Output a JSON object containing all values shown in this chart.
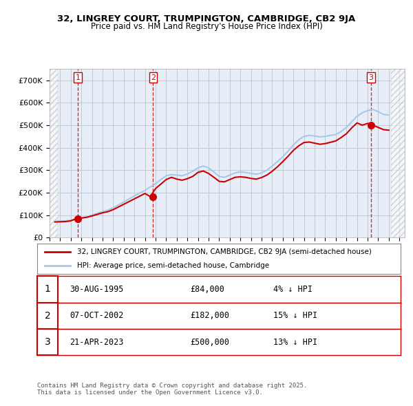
{
  "title1": "32, LINGREY COURT, TRUMPINGTON, CAMBRIDGE, CB2 9JA",
  "title2": "Price paid vs. HM Land Registry's House Price Index (HPI)",
  "ylabel_ticks": [
    "£0",
    "£100K",
    "£200K",
    "£300K",
    "£400K",
    "£500K",
    "£600K",
    "£700K"
  ],
  "ytick_vals": [
    0,
    100000,
    200000,
    300000,
    400000,
    500000,
    600000,
    700000
  ],
  "ylim": [
    0,
    750000
  ],
  "xlim_start": 1993.0,
  "xlim_end": 2026.5,
  "hpi_color": "#a8c8e8",
  "price_color": "#cc0000",
  "bg_color": "#e8eef8",
  "grid_color": "#c0c8d8",
  "sale_points": [
    {
      "year": 1995.664,
      "price": 84000,
      "label": "1"
    },
    {
      "year": 2002.769,
      "price": 182000,
      "label": "2"
    },
    {
      "year": 2023.311,
      "price": 500000,
      "label": "3"
    }
  ],
  "legend_line1": "32, LINGREY COURT, TRUMPINGTON, CAMBRIDGE, CB2 9JA (semi-detached house)",
  "legend_line2": "HPI: Average price, semi-detached house, Cambridge",
  "table_rows": [
    {
      "num": "1",
      "date": "30-AUG-1995",
      "price": "£84,000",
      "pct": "4% ↓ HPI"
    },
    {
      "num": "2",
      "date": "07-OCT-2002",
      "price": "£182,000",
      "pct": "15% ↓ HPI"
    },
    {
      "num": "3",
      "date": "21-APR-2023",
      "price": "£500,000",
      "pct": "13% ↓ HPI"
    }
  ],
  "footer": "Contains HM Land Registry data © Crown copyright and database right 2025.\nThis data is licensed under the Open Government Licence v3.0.",
  "hpi_data_x": [
    1993.5,
    1994.0,
    1994.5,
    1995.0,
    1995.5,
    1996.0,
    1996.5,
    1997.0,
    1997.5,
    1998.0,
    1998.5,
    1999.0,
    1999.5,
    2000.0,
    2000.5,
    2001.0,
    2001.5,
    2002.0,
    2002.5,
    2003.0,
    2003.5,
    2004.0,
    2004.5,
    2005.0,
    2005.5,
    2006.0,
    2006.5,
    2007.0,
    2007.5,
    2008.0,
    2008.5,
    2009.0,
    2009.5,
    2010.0,
    2010.5,
    2011.0,
    2011.5,
    2012.0,
    2012.5,
    2013.0,
    2013.5,
    2014.0,
    2014.5,
    2015.0,
    2015.5,
    2016.0,
    2016.5,
    2017.0,
    2017.5,
    2018.0,
    2018.5,
    2019.0,
    2019.5,
    2020.0,
    2020.5,
    2021.0,
    2021.5,
    2022.0,
    2022.5,
    2023.0,
    2023.5,
    2024.0,
    2024.5,
    2025.0
  ],
  "hpi_data_y": [
    72000,
    73000,
    74000,
    77000,
    80000,
    85000,
    92000,
    100000,
    108000,
    115000,
    122000,
    132000,
    145000,
    158000,
    172000,
    185000,
    198000,
    210000,
    225000,
    240000,
    258000,
    275000,
    280000,
    278000,
    275000,
    283000,
    295000,
    310000,
    318000,
    310000,
    292000,
    272000,
    268000,
    278000,
    288000,
    292000,
    290000,
    285000,
    282000,
    288000,
    300000,
    318000,
    338000,
    360000,
    385000,
    412000,
    435000,
    450000,
    455000,
    452000,
    448000,
    450000,
    455000,
    458000,
    472000,
    490000,
    515000,
    540000,
    555000,
    565000,
    570000,
    560000,
    548000,
    545000
  ],
  "price_data_x": [
    1993.5,
    1994.0,
    1994.5,
    1995.0,
    1995.5,
    1996.0,
    1996.5,
    1997.0,
    1997.5,
    1998.0,
    1998.5,
    1999.0,
    1999.5,
    2000.0,
    2000.5,
    2001.0,
    2001.5,
    2002.0,
    2002.5,
    2003.0,
    2003.5,
    2004.0,
    2004.5,
    2005.0,
    2005.5,
    2006.0,
    2006.5,
    2007.0,
    2007.5,
    2008.0,
    2008.5,
    2009.0,
    2009.5,
    2010.0,
    2010.5,
    2011.0,
    2011.5,
    2012.0,
    2012.5,
    2013.0,
    2013.5,
    2014.0,
    2014.5,
    2015.0,
    2015.5,
    2016.0,
    2016.5,
    2017.0,
    2017.5,
    2018.0,
    2018.5,
    2019.0,
    2019.5,
    2020.0,
    2020.5,
    2021.0,
    2021.5,
    2022.0,
    2022.5,
    2023.0,
    2023.5,
    2024.0,
    2024.5,
    2025.0
  ],
  "price_data_y": [
    69000,
    70000,
    71000,
    74000,
    84000,
    87000,
    90000,
    96000,
    103000,
    110000,
    115000,
    124000,
    136000,
    148000,
    160000,
    172000,
    184000,
    196000,
    182000,
    218000,
    238000,
    258000,
    268000,
    260000,
    255000,
    262000,
    272000,
    290000,
    296000,
    285000,
    268000,
    250000,
    248000,
    258000,
    268000,
    270000,
    268000,
    263000,
    260000,
    267000,
    278000,
    295000,
    315000,
    338000,
    362000,
    388000,
    408000,
    423000,
    425000,
    420000,
    415000,
    418000,
    424000,
    430000,
    445000,
    462000,
    488000,
    510000,
    500000,
    508000,
    500000,
    490000,
    480000,
    478000
  ]
}
